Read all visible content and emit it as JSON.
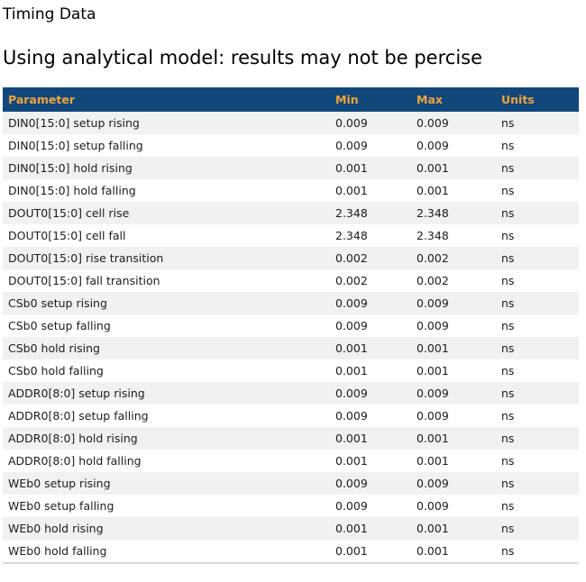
{
  "page": {
    "title": "Timing Data",
    "subtitle": "Using analytical model: results may not be percise"
  },
  "table": {
    "columns": [
      {
        "key": "parameter",
        "label": "Parameter"
      },
      {
        "key": "min",
        "label": "Min"
      },
      {
        "key": "max",
        "label": "Max"
      },
      {
        "key": "units",
        "label": "Units"
      }
    ],
    "rows": [
      {
        "parameter": "DIN0[15:0] setup rising",
        "min": "0.009",
        "max": "0.009",
        "units": "ns"
      },
      {
        "parameter": "DIN0[15:0] setup falling",
        "min": "0.009",
        "max": "0.009",
        "units": "ns"
      },
      {
        "parameter": "DIN0[15:0] hold rising",
        "min": "0.001",
        "max": "0.001",
        "units": "ns"
      },
      {
        "parameter": "DIN0[15:0] hold falling",
        "min": "0.001",
        "max": "0.001",
        "units": "ns"
      },
      {
        "parameter": "DOUT0[15:0] cell rise",
        "min": "2.348",
        "max": "2.348",
        "units": "ns"
      },
      {
        "parameter": "DOUT0[15:0] cell fall",
        "min": "2.348",
        "max": "2.348",
        "units": "ns"
      },
      {
        "parameter": "DOUT0[15:0] rise transition",
        "min": "0.002",
        "max": "0.002",
        "units": "ns"
      },
      {
        "parameter": "DOUT0[15:0] fall transition",
        "min": "0.002",
        "max": "0.002",
        "units": "ns"
      },
      {
        "parameter": "CSb0 setup rising",
        "min": "0.009",
        "max": "0.009",
        "units": "ns"
      },
      {
        "parameter": "CSb0 setup falling",
        "min": "0.009",
        "max": "0.009",
        "units": "ns"
      },
      {
        "parameter": "CSb0 hold rising",
        "min": "0.001",
        "max": "0.001",
        "units": "ns"
      },
      {
        "parameter": "CSb0 hold falling",
        "min": "0.001",
        "max": "0.001",
        "units": "ns"
      },
      {
        "parameter": "ADDR0[8:0] setup rising",
        "min": "0.009",
        "max": "0.009",
        "units": "ns"
      },
      {
        "parameter": "ADDR0[8:0] setup falling",
        "min": "0.009",
        "max": "0.009",
        "units": "ns"
      },
      {
        "parameter": "ADDR0[8:0] hold rising",
        "min": "0.001",
        "max": "0.001",
        "units": "ns"
      },
      {
        "parameter": "ADDR0[8:0] hold falling",
        "min": "0.001",
        "max": "0.001",
        "units": "ns"
      },
      {
        "parameter": "WEb0 setup rising",
        "min": "0.009",
        "max": "0.009",
        "units": "ns"
      },
      {
        "parameter": "WEb0 setup falling",
        "min": "0.009",
        "max": "0.009",
        "units": "ns"
      },
      {
        "parameter": "WEb0 hold rising",
        "min": "0.001",
        "max": "0.001",
        "units": "ns"
      },
      {
        "parameter": "WEb0 hold falling",
        "min": "0.001",
        "max": "0.001",
        "units": "ns"
      }
    ]
  },
  "colors": {
    "header_bg": "#12477b",
    "header_text": "#efa53c",
    "stripe_bg": "#f0f1f1",
    "table_bottom_border": "#d8dada"
  }
}
